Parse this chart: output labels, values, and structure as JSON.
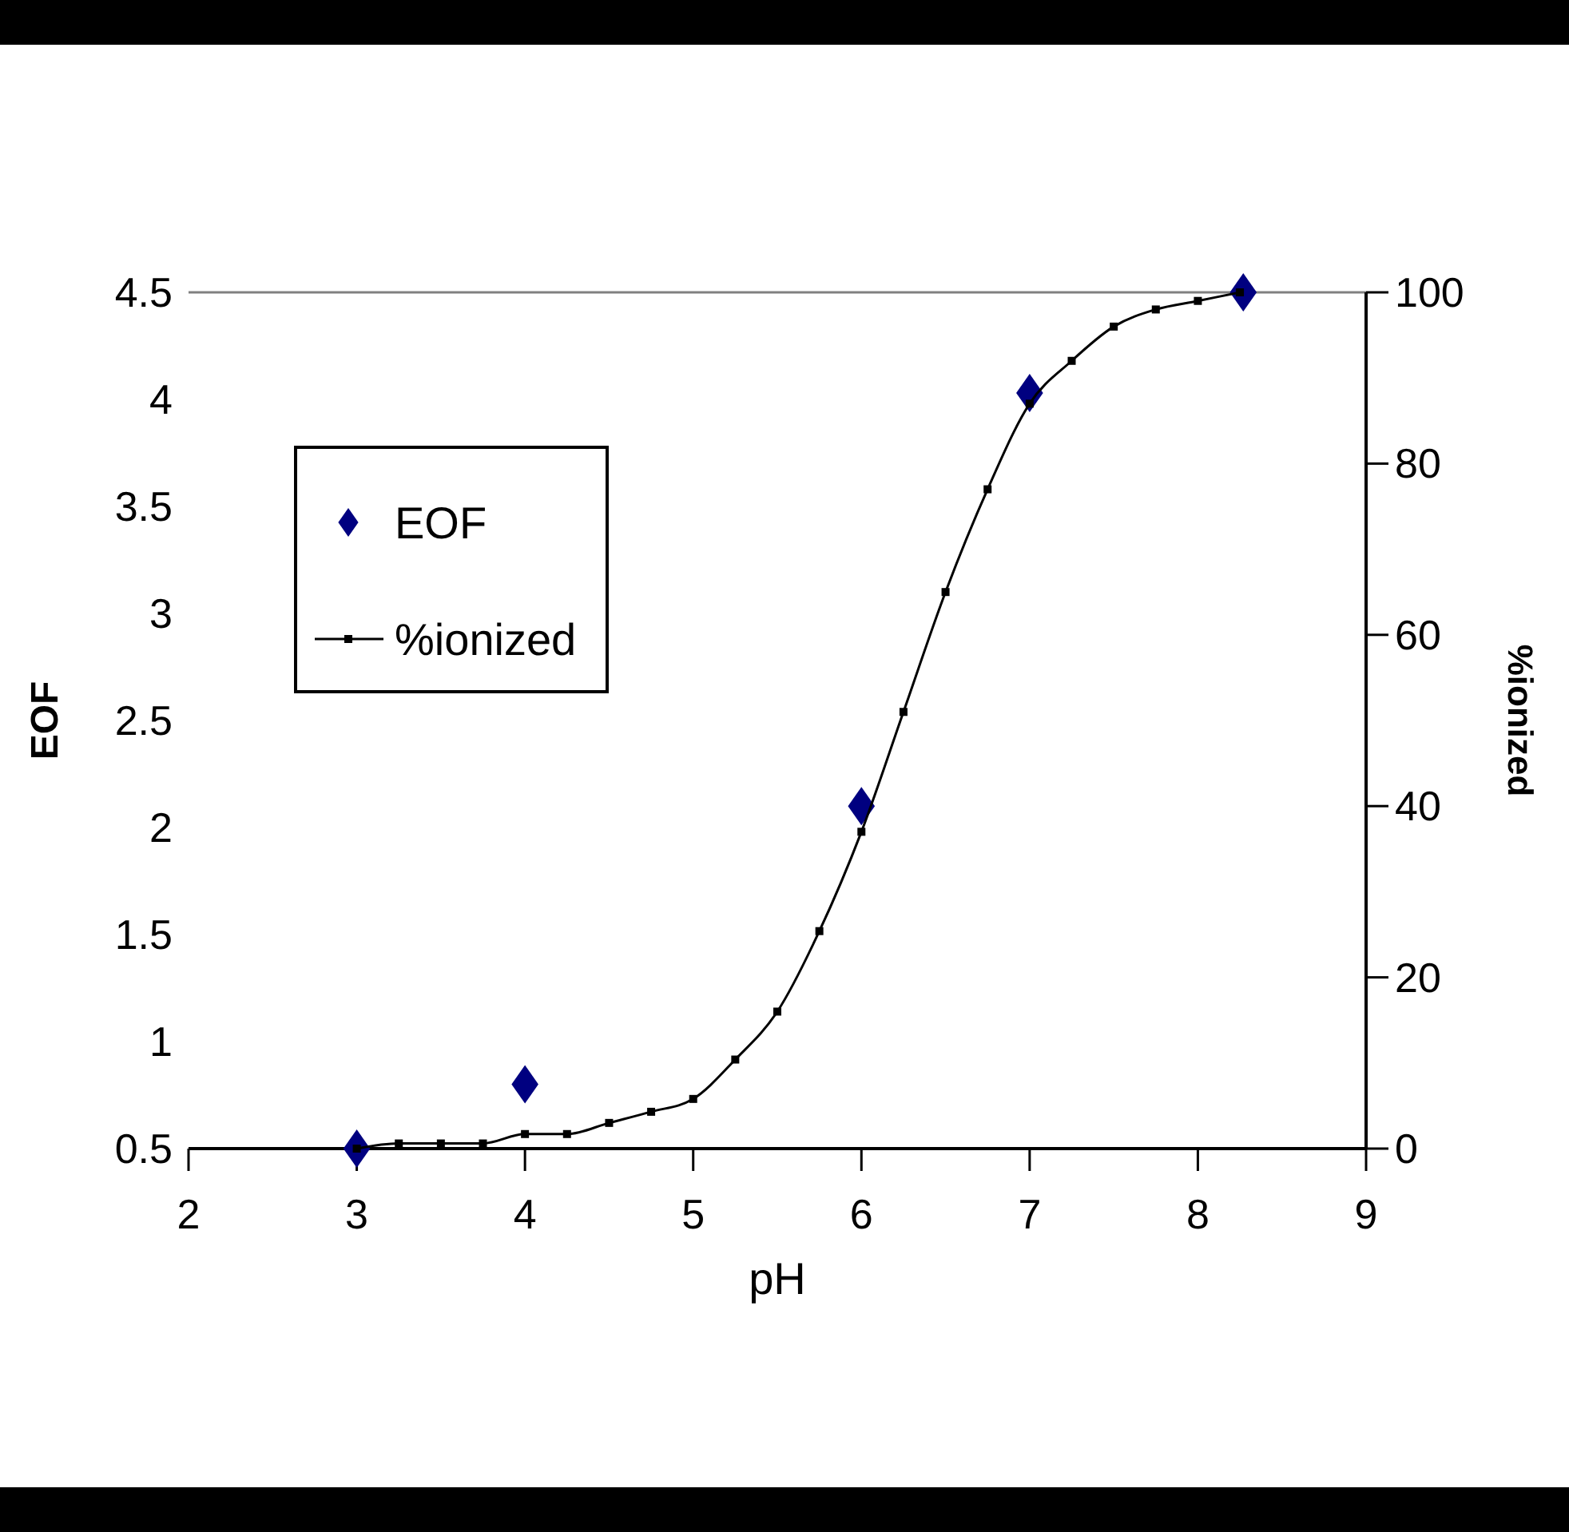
{
  "chart_data": {
    "type": "scatter",
    "xlabel": "pH",
    "ylabel": "EOF",
    "y2label": "%ionized",
    "xlim": [
      2,
      9
    ],
    "xticks": [
      2,
      3,
      4,
      5,
      6,
      7,
      8,
      9
    ],
    "ylim": [
      0.5,
      4.5
    ],
    "yticks": [
      0.5,
      1,
      1.5,
      2,
      2.5,
      3,
      3.5,
      4,
      4.5
    ],
    "y2lim": [
      0,
      100
    ],
    "y2ticks": [
      0,
      20,
      40,
      60,
      80,
      100
    ],
    "grid": false,
    "legend": "top left",
    "series": [
      {
        "name": "EOF",
        "marker": "diamond",
        "color": "#000080",
        "x": [
          3,
          4,
          6,
          7,
          8.27
        ],
        "values": [
          0.5,
          0.8,
          2.1,
          4.03,
          4.5
        ]
      },
      {
        "name": "%ionized",
        "type": "line",
        "axis": "y2",
        "marker": "square",
        "line_style": "solid",
        "color": "#000000",
        "x": [
          3,
          3.25,
          3.5,
          3.75,
          4,
          4.25,
          4.5,
          4.75,
          5,
          5.25,
          5.5,
          5.75,
          6,
          6.25,
          6.5,
          6.75,
          7,
          7.25,
          7.5,
          7.75,
          8,
          8.25
        ],
        "values": [
          0,
          0.6,
          0.6,
          0.6,
          1.7,
          1.7,
          3,
          4.3,
          5.8,
          10.4,
          16,
          25.4,
          37,
          51,
          65,
          77,
          87,
          92,
          96,
          98,
          99,
          100
        ]
      }
    ]
  }
}
